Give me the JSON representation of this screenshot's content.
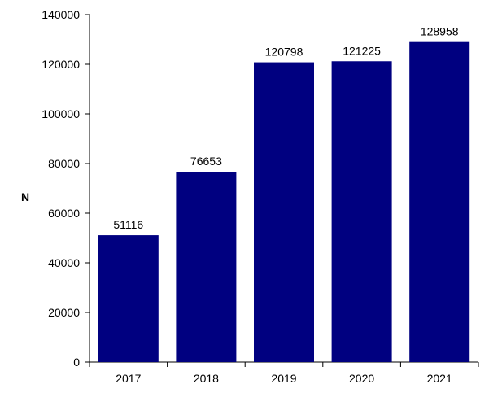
{
  "chart_data": {
    "type": "bar",
    "title": "",
    "xlabel": "",
    "ylabel": "N",
    "categories": [
      "2017",
      "2018",
      "2019",
      "2020",
      "2021"
    ],
    "values": [
      51116,
      76653,
      120798,
      121225,
      128958
    ],
    "data_labels": [
      "51116",
      "76653",
      "120798",
      "121225",
      "128958"
    ],
    "ylim": [
      0,
      140000
    ],
    "yticks": [
      0,
      20000,
      40000,
      60000,
      80000,
      100000,
      120000,
      140000
    ],
    "ytick_labels": [
      "0",
      "20000",
      "40000",
      "60000",
      "80000",
      "100000",
      "120000",
      "140000"
    ],
    "grid": false,
    "legend": "none",
    "bar_color": "#000080"
  }
}
